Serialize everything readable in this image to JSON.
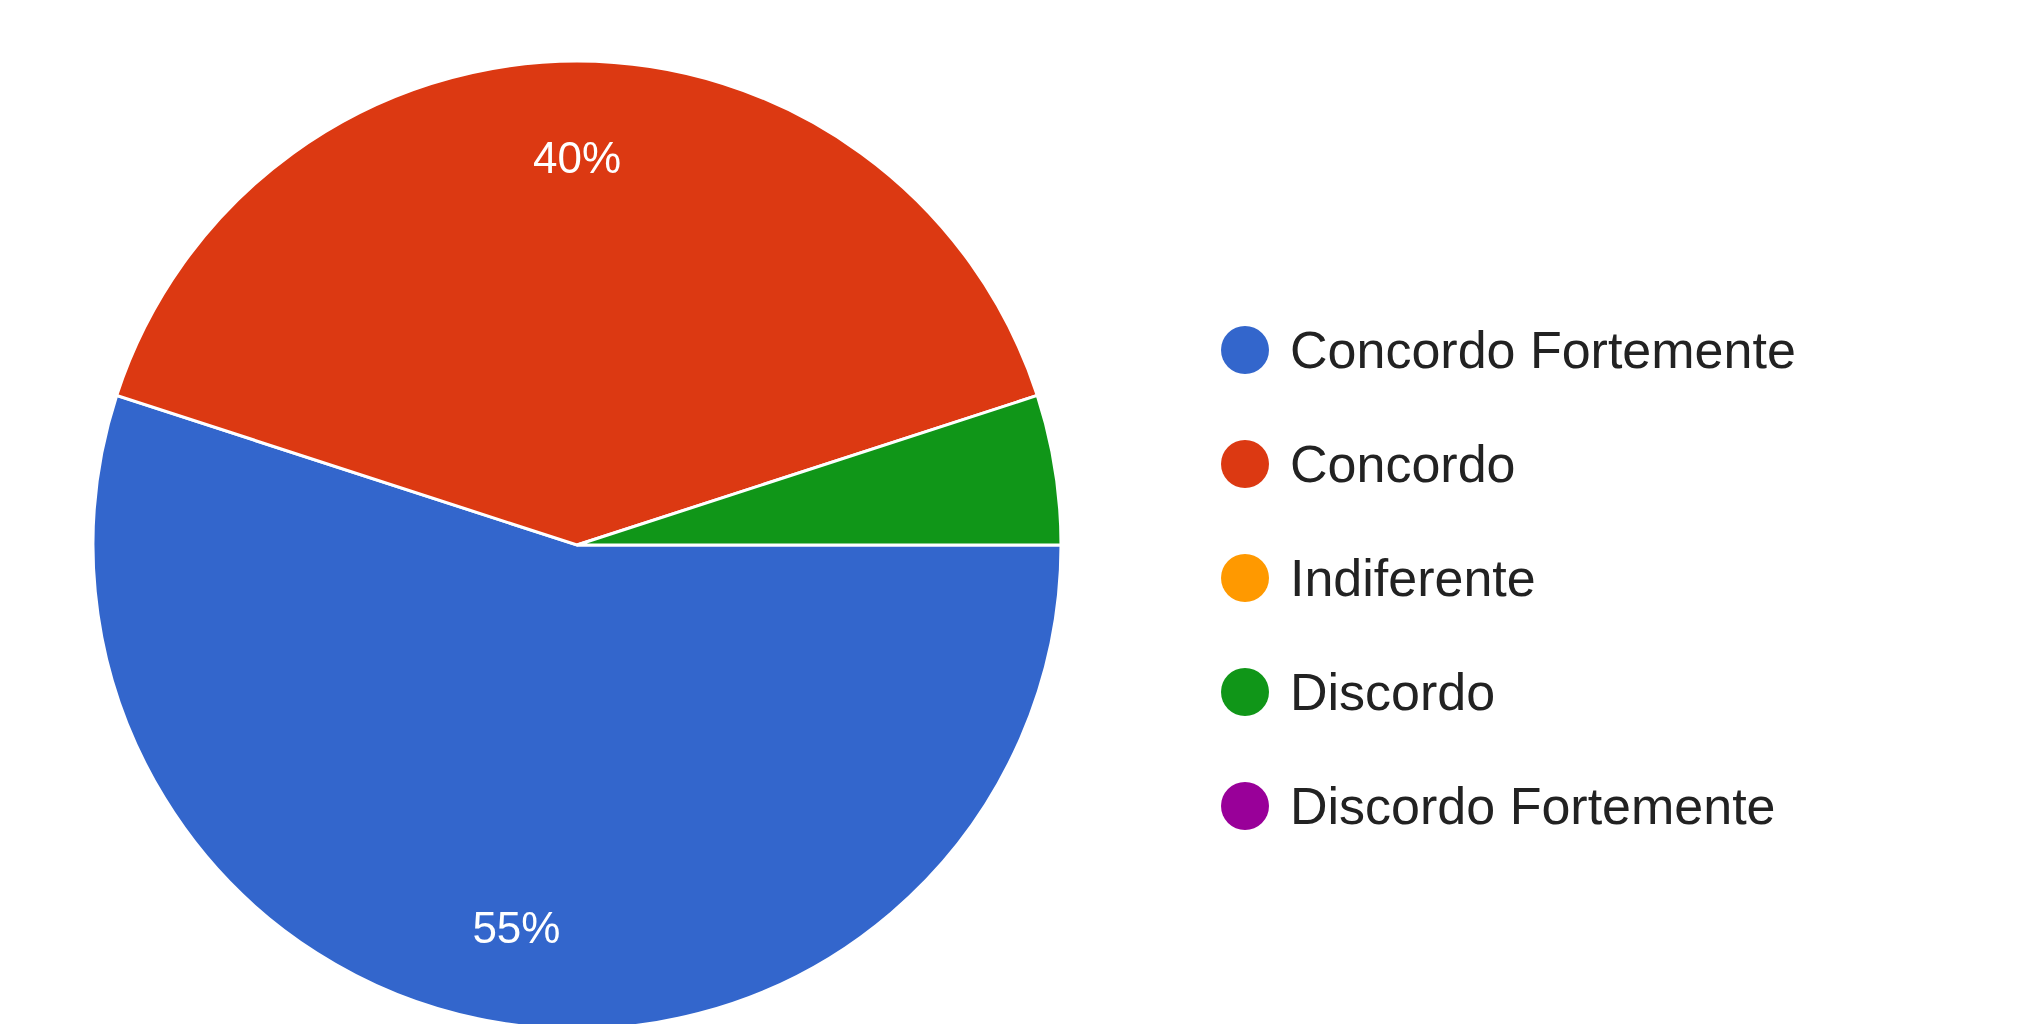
{
  "chart_data": {
    "type": "pie",
    "categories": [
      "Concordo Fortemente",
      "Concordo",
      "Indiferente",
      "Discordo",
      "Discordo Fortemente"
    ],
    "values": [
      55,
      40,
      0,
      5,
      0
    ],
    "colors": [
      "#3366cc",
      "#dc3912",
      "#ff9900",
      "#109618",
      "#990099"
    ],
    "value_labels": [
      "55%",
      "40%",
      null,
      null,
      null
    ],
    "legend": "right"
  }
}
